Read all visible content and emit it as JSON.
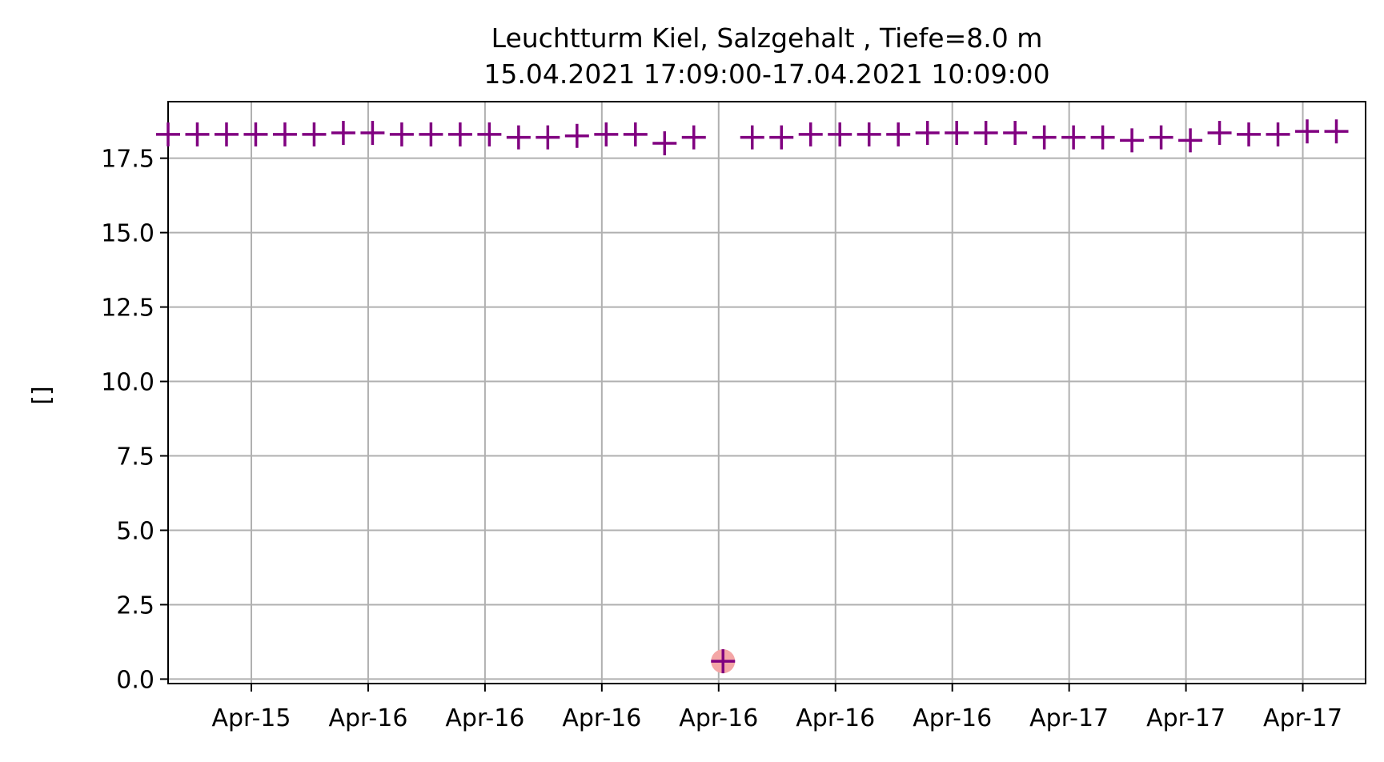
{
  "chart_data": {
    "type": "scatter",
    "title": "Leuchtturm Kiel, Salzgehalt , Tiefe=8.0 m",
    "subtitle": "15.04.2021 17:09:00-17.04.2021 10:09:00",
    "xlabel": "",
    "ylabel": "[]",
    "ylim": [
      -0.15,
      19.4
    ],
    "yticks": [
      0.0,
      2.5,
      5.0,
      7.5,
      10.0,
      12.5,
      15.0,
      17.5
    ],
    "ytick_labels": [
      "0.0",
      "2.5",
      "5.0",
      "7.5",
      "10.0",
      "12.5",
      "15.0",
      "17.5"
    ],
    "x_unit": "hours since 15.04.2021 17:09:00",
    "xlim": [
      0.0,
      41.0
    ],
    "xticks": [
      2.85,
      6.85,
      10.85,
      14.85,
      18.85,
      22.85,
      26.85,
      30.85,
      34.85,
      38.85
    ],
    "xtick_labels": [
      "Apr-15",
      "Apr-16",
      "Apr-16",
      "Apr-16",
      "Apr-16",
      "Apr-16",
      "Apr-16",
      "Apr-17",
      "Apr-17",
      "Apr-17"
    ],
    "grid": true,
    "marker": "+",
    "marker_color": "#800080",
    "flag_color": "#f4a6a6",
    "series": [
      {
        "x": [
          0,
          1,
          2,
          3,
          4,
          5,
          6,
          7,
          8,
          9,
          10,
          11,
          12,
          13,
          14,
          15,
          16,
          17,
          18,
          19,
          20,
          21,
          22,
          23,
          24,
          25,
          26,
          27,
          28,
          29,
          30,
          31,
          32,
          33,
          34,
          35,
          36,
          37,
          38,
          39,
          40
        ],
        "y": [
          18.3,
          18.3,
          18.3,
          18.3,
          18.3,
          18.3,
          18.35,
          18.35,
          18.3,
          18.3,
          18.3,
          18.3,
          18.2,
          18.2,
          18.25,
          18.3,
          18.3,
          18.0,
          18.2,
          0.6,
          18.2,
          18.2,
          18.3,
          18.3,
          18.3,
          18.3,
          18.35,
          18.35,
          18.35,
          18.35,
          18.2,
          18.2,
          18.2,
          18.1,
          18.2,
          18.1,
          18.35,
          18.3,
          18.3,
          18.4,
          18.4
        ],
        "flagged_index": 19
      }
    ]
  }
}
